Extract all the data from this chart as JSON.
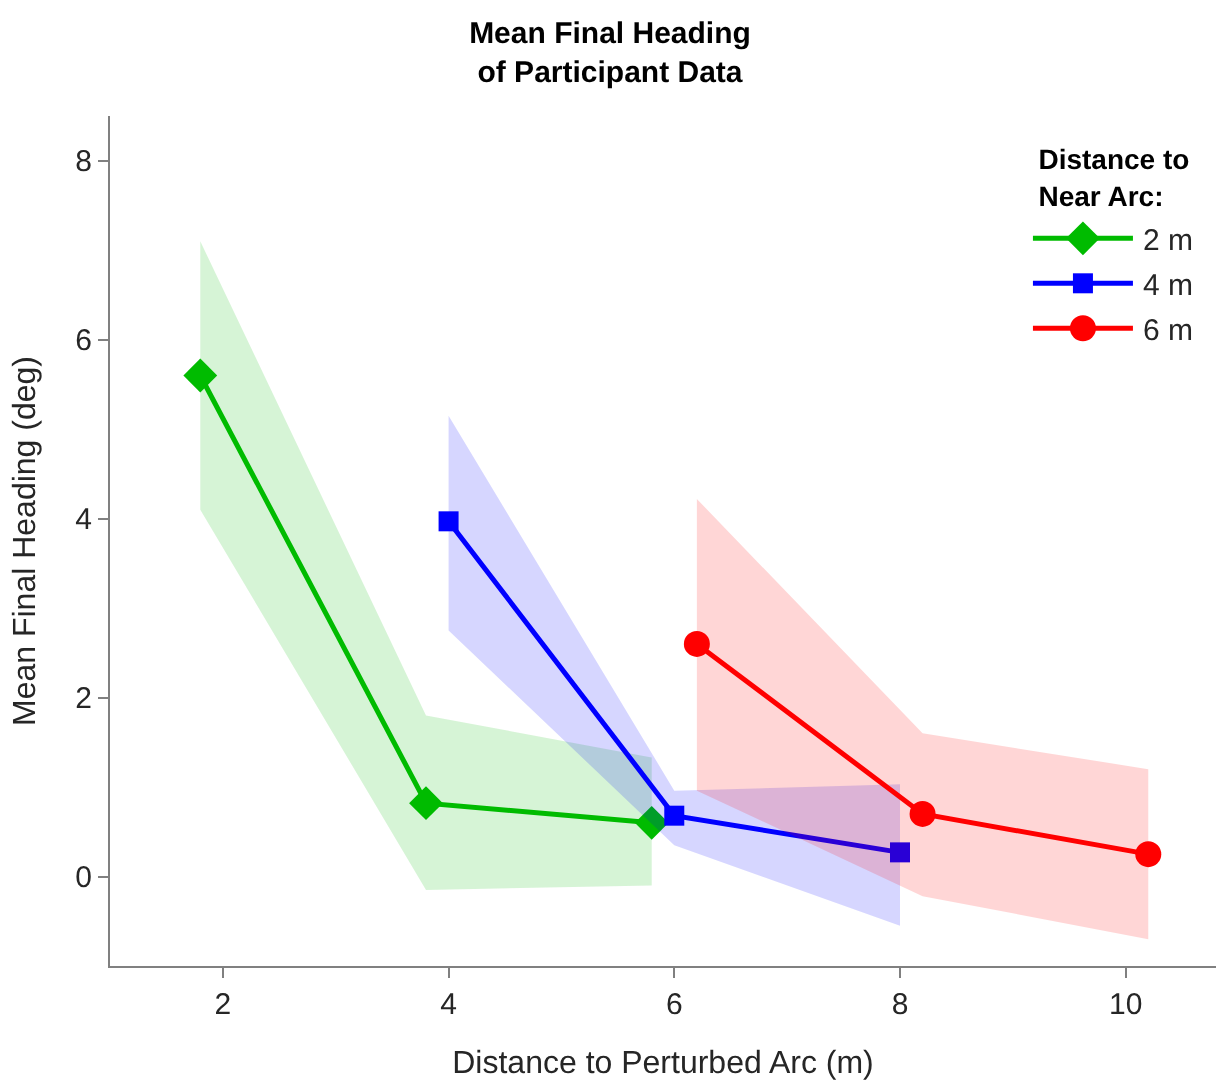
{
  "chart_data": {
    "type": "line",
    "title": "Mean Final Heading\nof Participant Data",
    "xlabel": "Distance to Perturbed Arc (m)",
    "ylabel": "Mean Final Heading (deg)",
    "legend_title": "Distance to\nNear Arc:",
    "legend": "top right",
    "xlim": [
      1,
      10.8
    ],
    "xticks": [
      2,
      4,
      6,
      8,
      10
    ],
    "ylim": [
      -1,
      8.5
    ],
    "yticks": [
      0,
      2,
      4,
      6,
      8
    ],
    "series": [
      {
        "name": "2 m",
        "color": "#00bb00",
        "marker": "diamond",
        "x": [
          1.8,
          3.8,
          5.8
        ],
        "values": [
          5.6,
          0.82,
          0.6
        ],
        "lower": [
          4.1,
          -0.15,
          -0.1
        ],
        "upper": [
          7.1,
          1.8,
          1.33
        ]
      },
      {
        "name": "4 m",
        "color": "#0000ff",
        "marker": "square",
        "x": [
          4,
          6,
          8
        ],
        "values": [
          3.97,
          0.68,
          0.27
        ],
        "lower": [
          2.75,
          0.35,
          -0.55
        ],
        "upper": [
          5.15,
          0.96,
          1.03
        ]
      },
      {
        "name": "6 m",
        "color": "#ff0000",
        "marker": "circle",
        "x": [
          6.2,
          8.2,
          10.2
        ],
        "values": [
          2.6,
          0.7,
          0.25
        ],
        "lower": [
          0.96,
          -0.22,
          -0.7
        ],
        "upper": [
          4.22,
          1.6,
          1.2
        ]
      }
    ]
  }
}
